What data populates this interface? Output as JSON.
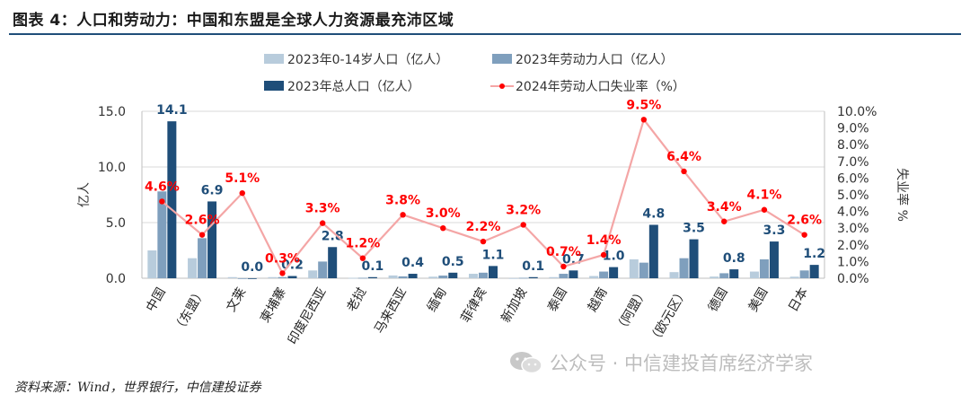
{
  "header": {
    "title": "图表 4：人口和劳动力：中国和东盟是全球人力资源最充沛区域"
  },
  "footer": {
    "source": "资料来源：Wind，世界银行，中信建投证券"
  },
  "watermark": {
    "text": "公众号 · 中信建投首席经济学家"
  },
  "colors": {
    "title_rule": "#1f4e79",
    "pop_0_14": "#b8ccdc",
    "labor": "#7f9fbd",
    "total": "#1f4e79",
    "unemployment": "#f4a6a6",
    "unemployment_marker": "#ff0000"
  },
  "chart_data": {
    "type": "bar",
    "categories": [
      "中国",
      "（东盟）",
      "文莱",
      "柬埔寨",
      "印度尼西亚",
      "老挝",
      "马来西亚",
      "缅甸",
      "菲律宾",
      "新加坡",
      "泰国",
      "越南",
      "（阿盟）",
      "（欧元区）",
      "德国",
      "美国",
      "日本"
    ],
    "series": [
      {
        "name": "2023年0-14岁人口（亿人）",
        "kind": "bar",
        "axis": "left",
        "color": "#b8ccdc",
        "values": [
          2.5,
          1.8,
          0.1,
          0.1,
          0.7,
          0.03,
          0.25,
          0.14,
          0.4,
          0.01,
          0.1,
          0.2,
          1.7,
          0.55,
          0.15,
          0.6,
          0.14
        ]
      },
      {
        "name": "2023年劳动力人口（亿人）",
        "kind": "bar",
        "axis": "left",
        "color": "#7f9fbd",
        "values": [
          7.8,
          3.6,
          0.002,
          0.1,
          1.5,
          0.04,
          0.17,
          0.24,
          0.5,
          0.04,
          0.4,
          0.6,
          1.4,
          1.8,
          0.45,
          1.7,
          0.7
        ]
      },
      {
        "name": "2023年总人口（亿人）",
        "kind": "bar",
        "axis": "left",
        "color": "#1f4e79",
        "values": [
          14.1,
          6.9,
          0.0,
          0.2,
          2.8,
          0.1,
          0.4,
          0.5,
          1.1,
          0.1,
          0.7,
          1.0,
          4.8,
          3.5,
          0.8,
          3.3,
          1.2
        ],
        "labels": [
          "14.1",
          "6.9",
          "0.0",
          "0.2",
          "2.8",
          "0.1",
          "0.4",
          "0.5",
          "1.1",
          "0.1",
          "0.7",
          "1.0",
          "4.8",
          "3.5",
          "0.8",
          "3.3",
          "1.2"
        ]
      },
      {
        "name": "2024年劳动人口失业率（%）",
        "kind": "line",
        "axis": "right",
        "color": "#f4a6a6",
        "values": [
          4.6,
          2.6,
          5.1,
          0.3,
          3.3,
          1.2,
          3.8,
          3.0,
          2.2,
          3.2,
          0.7,
          1.4,
          9.5,
          6.4,
          3.4,
          4.1,
          2.6
        ],
        "labels": [
          "4.6%",
          "2.6%",
          "5.1%",
          "0.3%",
          "3.3%",
          "1.2%",
          "3.8%",
          "3.0%",
          "2.2%",
          "3.2%",
          "0.7%",
          "1.4%",
          "9.5%",
          "6.4%",
          "3.4%",
          "4.1%",
          "2.6%"
        ]
      }
    ],
    "y_left": {
      "label": "亿人",
      "range": [
        0,
        15
      ],
      "ticks": [
        "0.0",
        "5.0",
        "10.0",
        "15.0"
      ]
    },
    "y_right": {
      "label": "失业率 %",
      "range": [
        0,
        10
      ],
      "ticks": [
        "0.0%",
        "1.0%",
        "2.0%",
        "3.0%",
        "4.0%",
        "5.0%",
        "6.0%",
        "7.0%",
        "8.0%",
        "9.0%",
        "10.0%"
      ]
    },
    "grid": "horizontal",
    "legend_position": "top"
  }
}
